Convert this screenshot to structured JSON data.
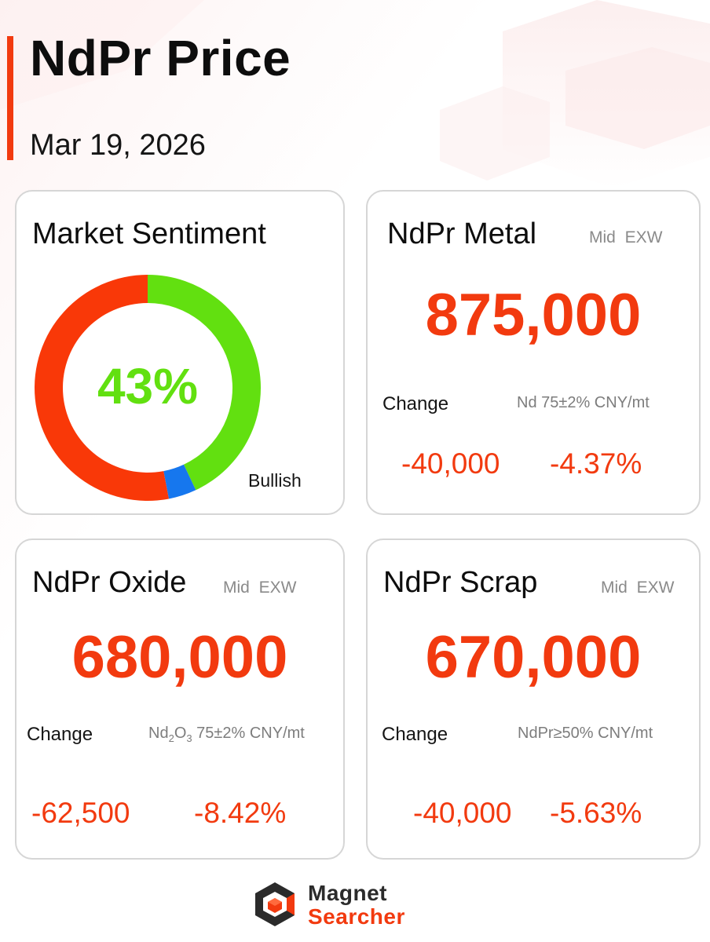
{
  "header": {
    "title": "NdPr Price",
    "date": "Mar 19, 2026",
    "accent_color": "#f23a0f"
  },
  "sentiment": {
    "title": "Market Sentiment",
    "percent_label": "43%",
    "bullish_label": "Bullish",
    "segments": [
      {
        "label": "Bullish",
        "value": 43,
        "color": "#62e010"
      },
      {
        "label": "",
        "value": 4,
        "color": "#1677ee"
      },
      {
        "label": "",
        "value": 53,
        "color": "#f93808"
      }
    ]
  },
  "metal": {
    "title": "NdPr Metal",
    "spec": "Mid EXW",
    "price": "875,000",
    "change_label": "Change",
    "unit": "Nd 75±2% CNY/mt",
    "change_abs": "-40,000",
    "change_pct": "-4.37%"
  },
  "oxide": {
    "title": "NdPr Oxide",
    "spec": "Mid EXW",
    "price": "680,000",
    "change_label": "Change",
    "unit_prefix": "Nd",
    "unit_sub1": "2",
    "unit_o": "O",
    "unit_sub2": "3",
    "unit_suffix": " 75±2% CNY/mt",
    "change_abs": "-62,500",
    "change_pct": "-8.42%"
  },
  "scrap": {
    "title": "NdPr Scrap",
    "spec": "Mid EXW",
    "price": "670,000",
    "change_label": "Change",
    "unit": "NdPr≥50% CNY/mt",
    "change_abs": "-40,000",
    "change_pct": "-5.63%"
  },
  "footer": {
    "brand_line1": "Magnet",
    "brand_line2": "Searcher"
  }
}
